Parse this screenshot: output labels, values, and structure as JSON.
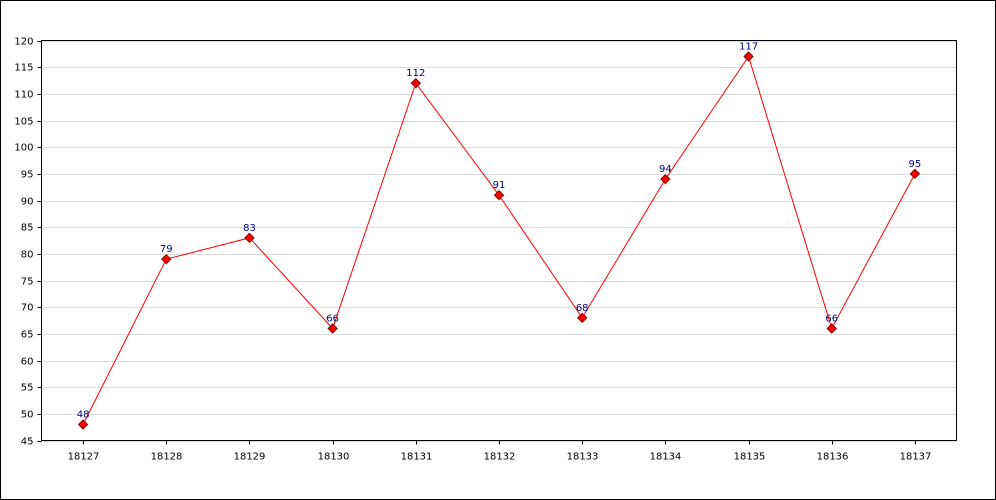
{
  "chart_data": {
    "type": "line",
    "categories": [
      "18127",
      "18128",
      "18129",
      "18130",
      "18131",
      "18132",
      "18133",
      "18134",
      "18135",
      "18136",
      "18137"
    ],
    "values": [
      48,
      79,
      83,
      66,
      112,
      91,
      68,
      94,
      117,
      66,
      95
    ],
    "color": "#ff0000",
    "ylim": [
      45,
      120
    ],
    "yticks": [
      45,
      50,
      55,
      60,
      65,
      70,
      75,
      80,
      85,
      90,
      95,
      100,
      105,
      110,
      115,
      120
    ],
    "grid": true
  }
}
